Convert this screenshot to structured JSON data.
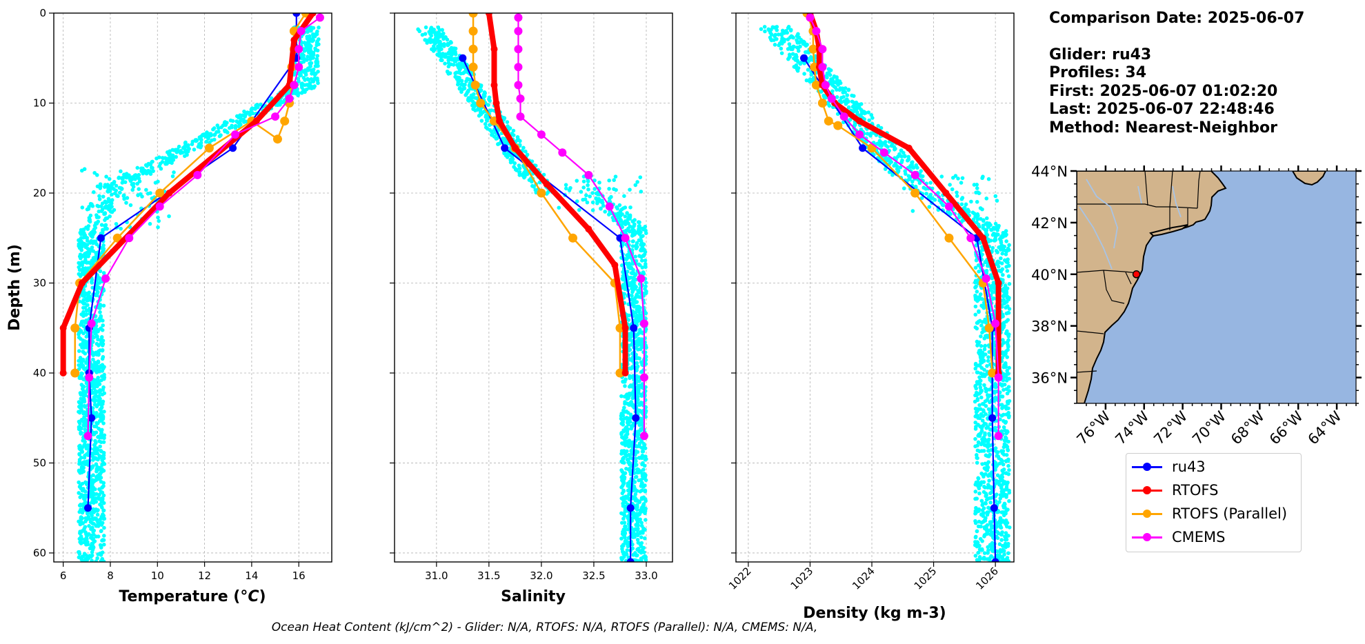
{
  "info": {
    "comparison_date": "Comparison Date: 2025-06-07",
    "glider": "Glider: ru43",
    "profiles": "Profiles: 34",
    "first": "First: 2025-06-07 01:02:20",
    "last": "Last: 2025-06-07 22:48:46",
    "method": "Method: Nearest-Neighbor"
  },
  "footer": "Ocean Heat Content (kJ/cm^2) - Glider: N/A,  RTOFS: N/A,  RTOFS (Parallel): N/A,  CMEMS: N/A,",
  "colors": {
    "ru43": "#0000ff",
    "rtofs": "#ff0000",
    "rtofs_parallel": "#ffa500",
    "cmems": "#ff00ff",
    "glider_scatter": "#00ffff",
    "land": "#d2b48c",
    "ocean": "#97b6e1"
  },
  "legend": [
    {
      "key": "ru43",
      "label": "ru43"
    },
    {
      "key": "rtofs",
      "label": "RTOFS"
    },
    {
      "key": "rtofs_parallel",
      "label": "RTOFS (Parallel)"
    },
    {
      "key": "cmems",
      "label": "CMEMS"
    }
  ],
  "chart_data": [
    {
      "type": "line",
      "xlabel": "Temperature (°C)",
      "ylabel": "Depth (m)",
      "xlim": [
        5.6,
        17.4
      ],
      "ylim": [
        61,
        0
      ],
      "xticks": [
        "6",
        "8",
        "10",
        "12",
        "14",
        "16"
      ],
      "yticks": [
        "0",
        "10",
        "20",
        "30",
        "40",
        "50",
        "60"
      ],
      "grid": true,
      "series": [
        {
          "name": "ru43",
          "key": "ru43",
          "x": [
            15.9,
            15.9,
            13.2,
            7.6,
            7.1,
            7.1,
            7.2,
            7.05
          ],
          "y": [
            0,
            5,
            15,
            25,
            35,
            40,
            45,
            55
          ]
        },
        {
          "name": "RTOFS",
          "key": "rtofs",
          "x": [
            16.6,
            15.8,
            15.6,
            14.2,
            10.5,
            6.8,
            6.0,
            6.0
          ],
          "y": [
            0,
            3,
            8,
            12,
            20,
            30,
            35,
            40
          ]
        },
        {
          "name": "RTOFS (Parallel)",
          "key": "rtofs_parallel",
          "x": [
            16.3,
            15.8,
            15.8,
            15.7,
            15.7,
            15.6,
            15.4,
            15.1,
            14.0,
            12.2,
            10.1,
            8.3,
            6.7,
            6.5,
            6.5
          ],
          "y": [
            0,
            2,
            4,
            6,
            8,
            10,
            12,
            14,
            12,
            15,
            20,
            25,
            30,
            35,
            40
          ]
        },
        {
          "name": "CMEMS",
          "key": "cmems",
          "x": [
            16.9,
            16.1,
            16.0,
            16.0,
            15.8,
            15.6,
            15.0,
            13.3,
            11.7,
            10.1,
            8.8,
            7.8,
            7.2,
            7.1,
            7.05
          ],
          "y": [
            0.5,
            2,
            4,
            6,
            8,
            9.5,
            11.5,
            13.5,
            18,
            21.5,
            25,
            29.5,
            34.5,
            40.5,
            47
          ]
        }
      ]
    },
    {
      "type": "line",
      "xlabel": "Salinity",
      "xlim": [
        30.6,
        33.25
      ],
      "ylim": [
        61,
        0
      ],
      "xticks": [
        "31.0",
        "31.5",
        "32.0",
        "32.5",
        "33.0"
      ],
      "grid": true,
      "series": [
        {
          "name": "ru43",
          "key": "ru43",
          "x": [
            31.25,
            31.65,
            32.75,
            32.88,
            32.9,
            32.85,
            32.85
          ],
          "y": [
            5,
            15,
            25,
            35,
            45,
            55,
            61
          ]
        },
        {
          "name": "RTOFS",
          "key": "rtofs",
          "x": [
            31.5,
            31.55,
            31.55,
            31.57,
            31.6,
            31.75,
            32.05,
            32.45,
            32.7,
            32.8,
            32.8
          ],
          "y": [
            0,
            4,
            8,
            10,
            12,
            15,
            19,
            24,
            28,
            35,
            40
          ]
        },
        {
          "name": "RTOFS (Parallel)",
          "key": "rtofs_parallel",
          "x": [
            31.35,
            31.35,
            31.35,
            31.35,
            31.37,
            31.42,
            31.55,
            31.75,
            32.0,
            32.3,
            32.7,
            32.75,
            32.75
          ],
          "y": [
            0,
            2,
            4,
            6,
            8,
            10,
            12,
            15,
            20,
            25,
            30,
            35,
            40
          ]
        },
        {
          "name": "CMEMS",
          "key": "cmems",
          "x": [
            31.78,
            31.78,
            31.78,
            31.78,
            31.78,
            31.8,
            31.8,
            32.0,
            32.2,
            32.45,
            32.65,
            32.8,
            32.95,
            32.98,
            32.98,
            32.98
          ],
          "y": [
            0.5,
            2,
            4,
            6,
            8,
            9.5,
            11.5,
            13.5,
            15.5,
            18,
            21.5,
            25,
            29.5,
            34.5,
            40.5,
            47
          ]
        }
      ]
    },
    {
      "type": "line",
      "xlabel": "Density (kg m-3)",
      "xlim": [
        1021.8,
        1026.3
      ],
      "ylim": [
        61,
        0
      ],
      "xticks": [
        "1022",
        "1023",
        "1024",
        "1025",
        "1026"
      ],
      "grid": true,
      "series": [
        {
          "name": "ru43",
          "key": "ru43",
          "x": [
            1022.9,
            1023.85,
            1025.7,
            1025.95,
            1025.95,
            1025.98,
            1026.0
          ],
          "y": [
            5,
            15,
            25,
            35,
            45,
            55,
            61
          ]
        },
        {
          "name": "RTOFS",
          "key": "rtofs",
          "x": [
            1023.0,
            1023.1,
            1023.15,
            1023.15,
            1023.2,
            1023.4,
            1023.8,
            1024.6,
            1025.2,
            1025.8,
            1026.05,
            1026.05
          ],
          "y": [
            0,
            2,
            4,
            6,
            8,
            10,
            12,
            15,
            20,
            25,
            30,
            40
          ]
        },
        {
          "name": "RTOFS (Parallel)",
          "key": "rtofs_parallel",
          "x": [
            1022.95,
            1023.05,
            1023.05,
            1023.07,
            1023.1,
            1023.2,
            1023.3,
            1023.45,
            1024.0,
            1024.7,
            1025.25,
            1025.8,
            1025.9,
            1025.95
          ],
          "y": [
            0,
            2,
            4,
            6,
            8,
            10,
            12,
            12.5,
            15,
            20,
            25,
            30,
            35,
            40
          ]
        },
        {
          "name": "CMEMS",
          "key": "cmems",
          "x": [
            1023.0,
            1023.1,
            1023.2,
            1023.2,
            1023.25,
            1023.35,
            1023.55,
            1023.8,
            1024.2,
            1024.7,
            1025.25,
            1025.6,
            1025.85,
            1026.0,
            1026.05,
            1026.05
          ],
          "y": [
            0.5,
            2,
            4,
            6,
            8,
            9.5,
            11.5,
            13.5,
            15.5,
            18,
            21.5,
            25,
            29.5,
            34.5,
            40.5,
            47
          ]
        }
      ]
    },
    {
      "type": "map",
      "lon_range": [
        -77.5,
        -63
      ],
      "lat_range": [
        35,
        44
      ],
      "xticks": [
        "76°W",
        "74°W",
        "72°W",
        "70°W",
        "68°W",
        "66°W",
        "64°W"
      ],
      "yticks": [
        "44°N",
        "42°N",
        "40°N",
        "38°N",
        "36°N"
      ],
      "glider_position": {
        "lon": -74.4,
        "lat": 40.0
      }
    }
  ]
}
